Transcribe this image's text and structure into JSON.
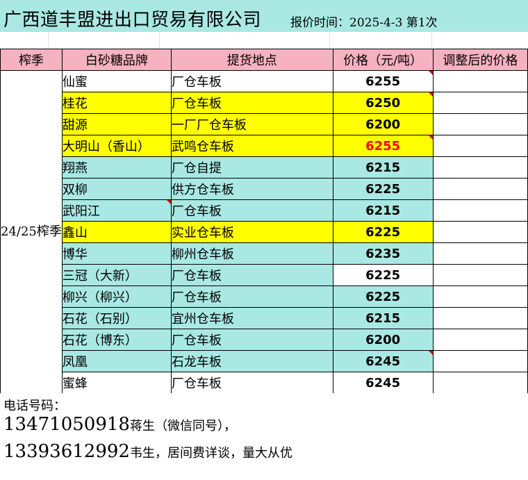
{
  "header": {
    "company": "广西道丰盟进出口贸易有限公司",
    "quote_label": "报价时间：2025-4-3 第1次"
  },
  "table": {
    "columns": [
      "榨季",
      "白砂糖品牌",
      "提货地点",
      "价格（元/吨）",
      "调整后的价格"
    ],
    "season": "24/25榨季",
    "colors": {
      "white": "#ffffff",
      "yellow": "#ffff00",
      "cyan": "#a9e8e3",
      "header": "#f5b2c0",
      "price_red": "#ff0000"
    },
    "rows": [
      {
        "brand": "仙蜜",
        "location": "厂仓车板",
        "price": "6255",
        "bg": "white",
        "price_bg": "white",
        "red": false,
        "flag": true
      },
      {
        "brand": "桂花",
        "location": "厂仓车板",
        "price": "6250",
        "bg": "yellow",
        "price_bg": "yellow",
        "red": false,
        "flag": true
      },
      {
        "brand": "甜源",
        "location": "一厂厂仓车板",
        "price": "6200",
        "bg": "yellow",
        "price_bg": "yellow",
        "red": false,
        "flag": false
      },
      {
        "brand": "大明山（香山）",
        "location": "武鸣仓车板",
        "price": "6255",
        "bg": "yellow",
        "price_bg": "yellow",
        "red": true,
        "flag": true
      },
      {
        "brand": "翔燕",
        "location": "厂仓自提",
        "price": "6215",
        "bg": "cyan",
        "price_bg": "cyan",
        "red": false,
        "flag": false
      },
      {
        "brand": "双柳",
        "location": "供方仓车板",
        "price": "6225",
        "bg": "cyan",
        "price_bg": "cyan",
        "red": false,
        "flag": false
      },
      {
        "brand": "武阳江",
        "location": "厂仓车板",
        "price": "6215",
        "bg": "cyan",
        "price_bg": "cyan",
        "red": false,
        "flag": false,
        "brand_flag": true
      },
      {
        "brand": "鑫山",
        "location": "实业仓车板",
        "price": "6225",
        "bg": "yellow",
        "price_bg": "yellow",
        "red": false,
        "flag": false
      },
      {
        "brand": "博华",
        "location": "柳州仓车板",
        "price": "6235",
        "bg": "cyan",
        "price_bg": "cyan",
        "red": false,
        "flag": false
      },
      {
        "brand": "三冠（大新）",
        "location": "厂仓车板",
        "price": "6225",
        "bg": "cyan",
        "price_bg": "white",
        "red": false,
        "flag": false
      },
      {
        "brand": "柳兴（柳兴）",
        "location": "厂仓车板",
        "price": "6225",
        "bg": "cyan",
        "price_bg": "cyan",
        "red": false,
        "flag": false
      },
      {
        "brand": "石花（石别）",
        "location": "宜州仓车板",
        "price": "6215",
        "bg": "cyan",
        "price_bg": "cyan",
        "red": false,
        "flag": false
      },
      {
        "brand": "石花（博东）",
        "location": "厂仓车板",
        "price": "6200",
        "bg": "cyan",
        "price_bg": "cyan",
        "red": false,
        "flag": false
      },
      {
        "brand": "凤凰",
        "location": "石龙车板",
        "price": "6245",
        "bg": "cyan",
        "price_bg": "cyan",
        "red": false,
        "flag": true
      },
      {
        "brand": "蜜蜂",
        "location": "厂仓车板",
        "price": "6245",
        "bg": "white",
        "price_bg": "white",
        "red": false,
        "flag": false
      }
    ]
  },
  "contacts": {
    "label": "电话号码：",
    "lines": [
      {
        "number": "13471050918",
        "note": "蒋生（微信同号），"
      },
      {
        "number": "13393612992",
        "note": "韦生，居间费详谈，量大从优"
      }
    ]
  }
}
